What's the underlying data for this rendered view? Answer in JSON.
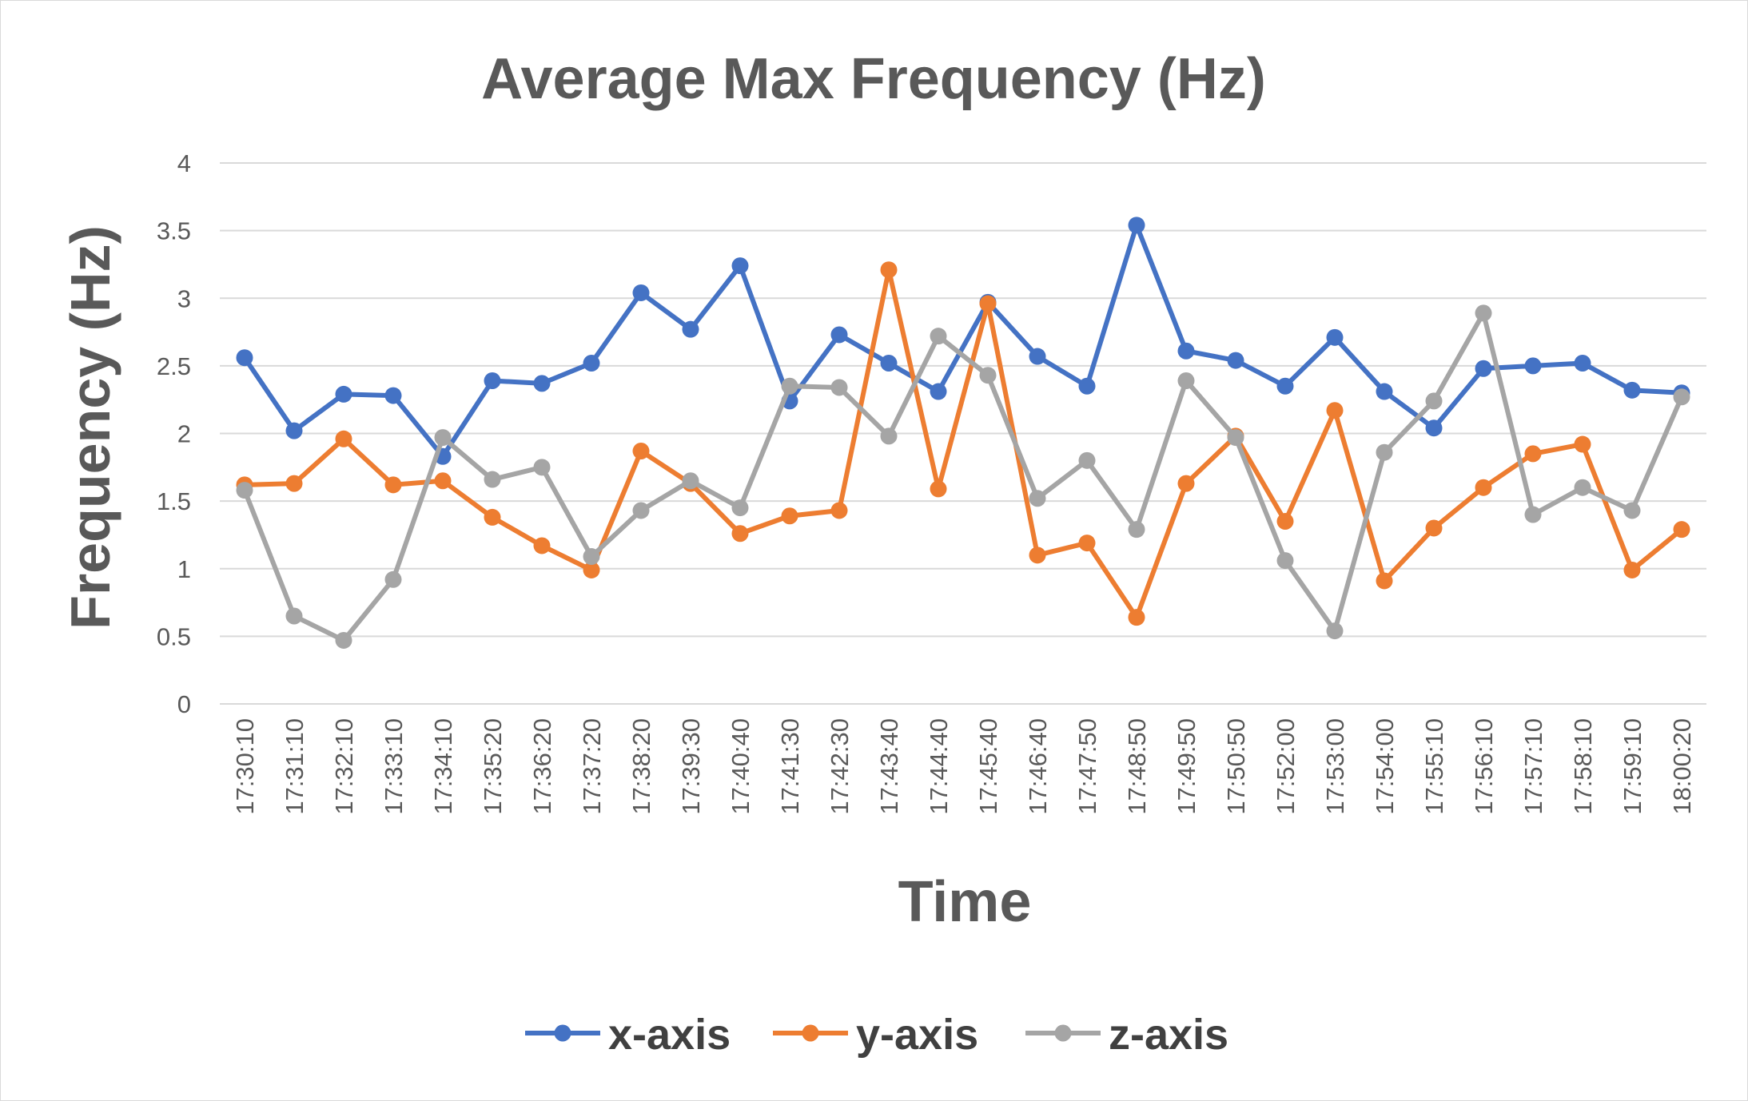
{
  "chart_data": {
    "type": "line",
    "title": "Average Max Frequency (Hz)",
    "xlabel": "Time",
    "ylabel": "Frequency (Hz)",
    "ylim": [
      0,
      4
    ],
    "yticks": [
      "0",
      "0.5",
      "1",
      "1.5",
      "2",
      "2.5",
      "3",
      "3.5",
      "4"
    ],
    "grid": true,
    "legend_position": "bottom",
    "x": [
      "17:30:10",
      "17:31:10",
      "17:32:10",
      "17:33:10",
      "17:34:10",
      "17:35:20",
      "17:36:20",
      "17:37:20",
      "17:38:20",
      "17:39:30",
      "17:40:40",
      "17:41:30",
      "17:42:30",
      "17:43:40",
      "17:44:40",
      "17:45:40",
      "17:46:40",
      "17:47:50",
      "17:48:50",
      "17:49:50",
      "17:50:50",
      "17:52:00",
      "17:53:00",
      "17:54:00",
      "17:55:10",
      "17:56:10",
      "17:57:10",
      "17:58:10",
      "17:59:10",
      "18:00:20"
    ],
    "series": [
      {
        "name": "x-axis",
        "color": "#4472c4",
        "values": [
          2.56,
          2.02,
          2.29,
          2.28,
          1.83,
          2.39,
          2.37,
          2.52,
          3.04,
          2.77,
          3.24,
          2.24,
          2.73,
          2.52,
          2.31,
          2.97,
          2.57,
          2.35,
          3.54,
          2.61,
          2.54,
          2.35,
          2.71,
          2.31,
          2.04,
          2.48,
          2.5,
          2.52,
          2.32,
          2.3
        ]
      },
      {
        "name": "y-axis",
        "color": "#ed7d31",
        "values": [
          1.62,
          1.63,
          1.96,
          1.62,
          1.65,
          1.38,
          1.17,
          0.99,
          1.87,
          1.63,
          1.26,
          1.39,
          1.43,
          3.21,
          1.59,
          2.96,
          1.1,
          1.19,
          0.64,
          1.63,
          1.98,
          1.35,
          2.17,
          0.91,
          1.3,
          1.6,
          1.85,
          1.92,
          0.99,
          1.29
        ]
      },
      {
        "name": "z-axis",
        "color": "#a5a5a5",
        "values": [
          1.58,
          0.65,
          0.47,
          0.92,
          1.97,
          1.66,
          1.75,
          1.09,
          1.43,
          1.65,
          1.45,
          2.35,
          2.34,
          1.98,
          2.72,
          2.43,
          1.52,
          1.8,
          1.29,
          2.39,
          1.97,
          1.06,
          0.54,
          1.86,
          2.24,
          2.89,
          1.4,
          1.6,
          1.43,
          2.27
        ]
      }
    ]
  }
}
